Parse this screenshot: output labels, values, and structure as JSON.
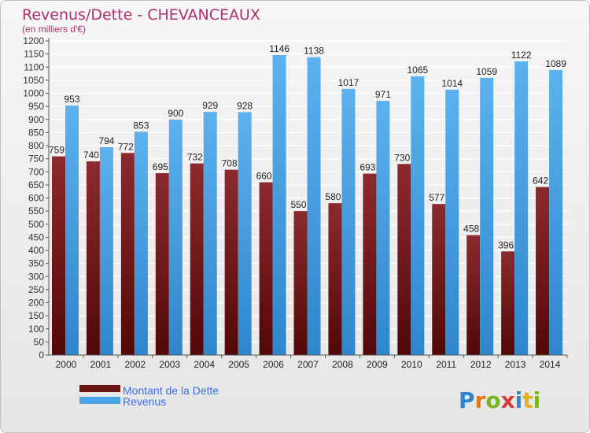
{
  "chart_data": {
    "type": "bar",
    "title": "Revenus/Dette - CHEVANCEAUX",
    "subtitle": "(en milliers d'€)",
    "categories": [
      "2000",
      "2001",
      "2002",
      "2003",
      "2004",
      "2005",
      "2006",
      "2007",
      "2008",
      "2009",
      "2010",
      "2011",
      "2012",
      "2013",
      "2014"
    ],
    "series": [
      {
        "name": "Montant de la Dette",
        "values": [
          759,
          740,
          772,
          695,
          732,
          708,
          660,
          550,
          580,
          693,
          730,
          577,
          458,
          396,
          642
        ]
      },
      {
        "name": "Revenus",
        "values": [
          953,
          794,
          853,
          900,
          929,
          928,
          1146,
          1138,
          1017,
          971,
          1065,
          1014,
          1059,
          1122,
          1089
        ]
      }
    ],
    "ylim": [
      0,
      1200
    ],
    "yticks": [
      0,
      50,
      100,
      150,
      200,
      250,
      300,
      350,
      400,
      450,
      500,
      550,
      600,
      650,
      700,
      750,
      800,
      850,
      900,
      950,
      1000,
      1050,
      1100,
      1150,
      1200
    ],
    "grid": true,
    "legend_position": "bottom-left",
    "colors": {
      "dette": "#7a1f22",
      "revenus": "#4aa3e6",
      "title": "#b0306a"
    }
  },
  "brand": {
    "logo_text": "Proxiti"
  }
}
